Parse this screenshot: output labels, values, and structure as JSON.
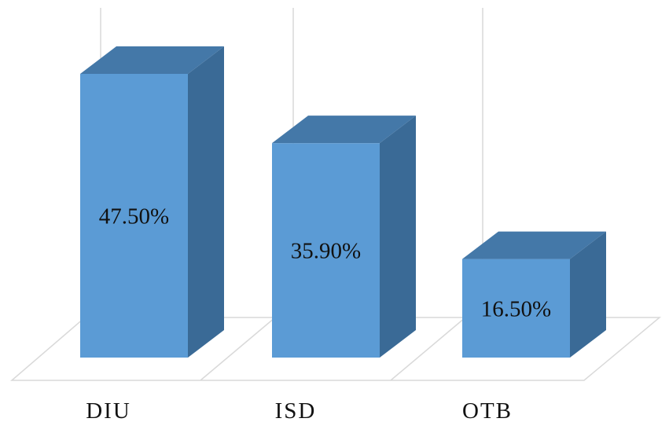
{
  "chart_data": {
    "type": "bar",
    "categories": [
      "DIU",
      "ISD",
      "OTB"
    ],
    "values": [
      47.5,
      35.9,
      16.5
    ],
    "value_labels": [
      "47.50%",
      "35.90%",
      "16.50%"
    ],
    "title": "",
    "xlabel": "",
    "ylabel": "",
    "ylim": [
      0,
      50
    ],
    "grid": true,
    "legend": "none",
    "style": "3d-column",
    "colors": {
      "front": "#5b9bd5",
      "top": "#4478a8",
      "side": "#3a6a96",
      "grid": "#d9d9d9"
    }
  }
}
